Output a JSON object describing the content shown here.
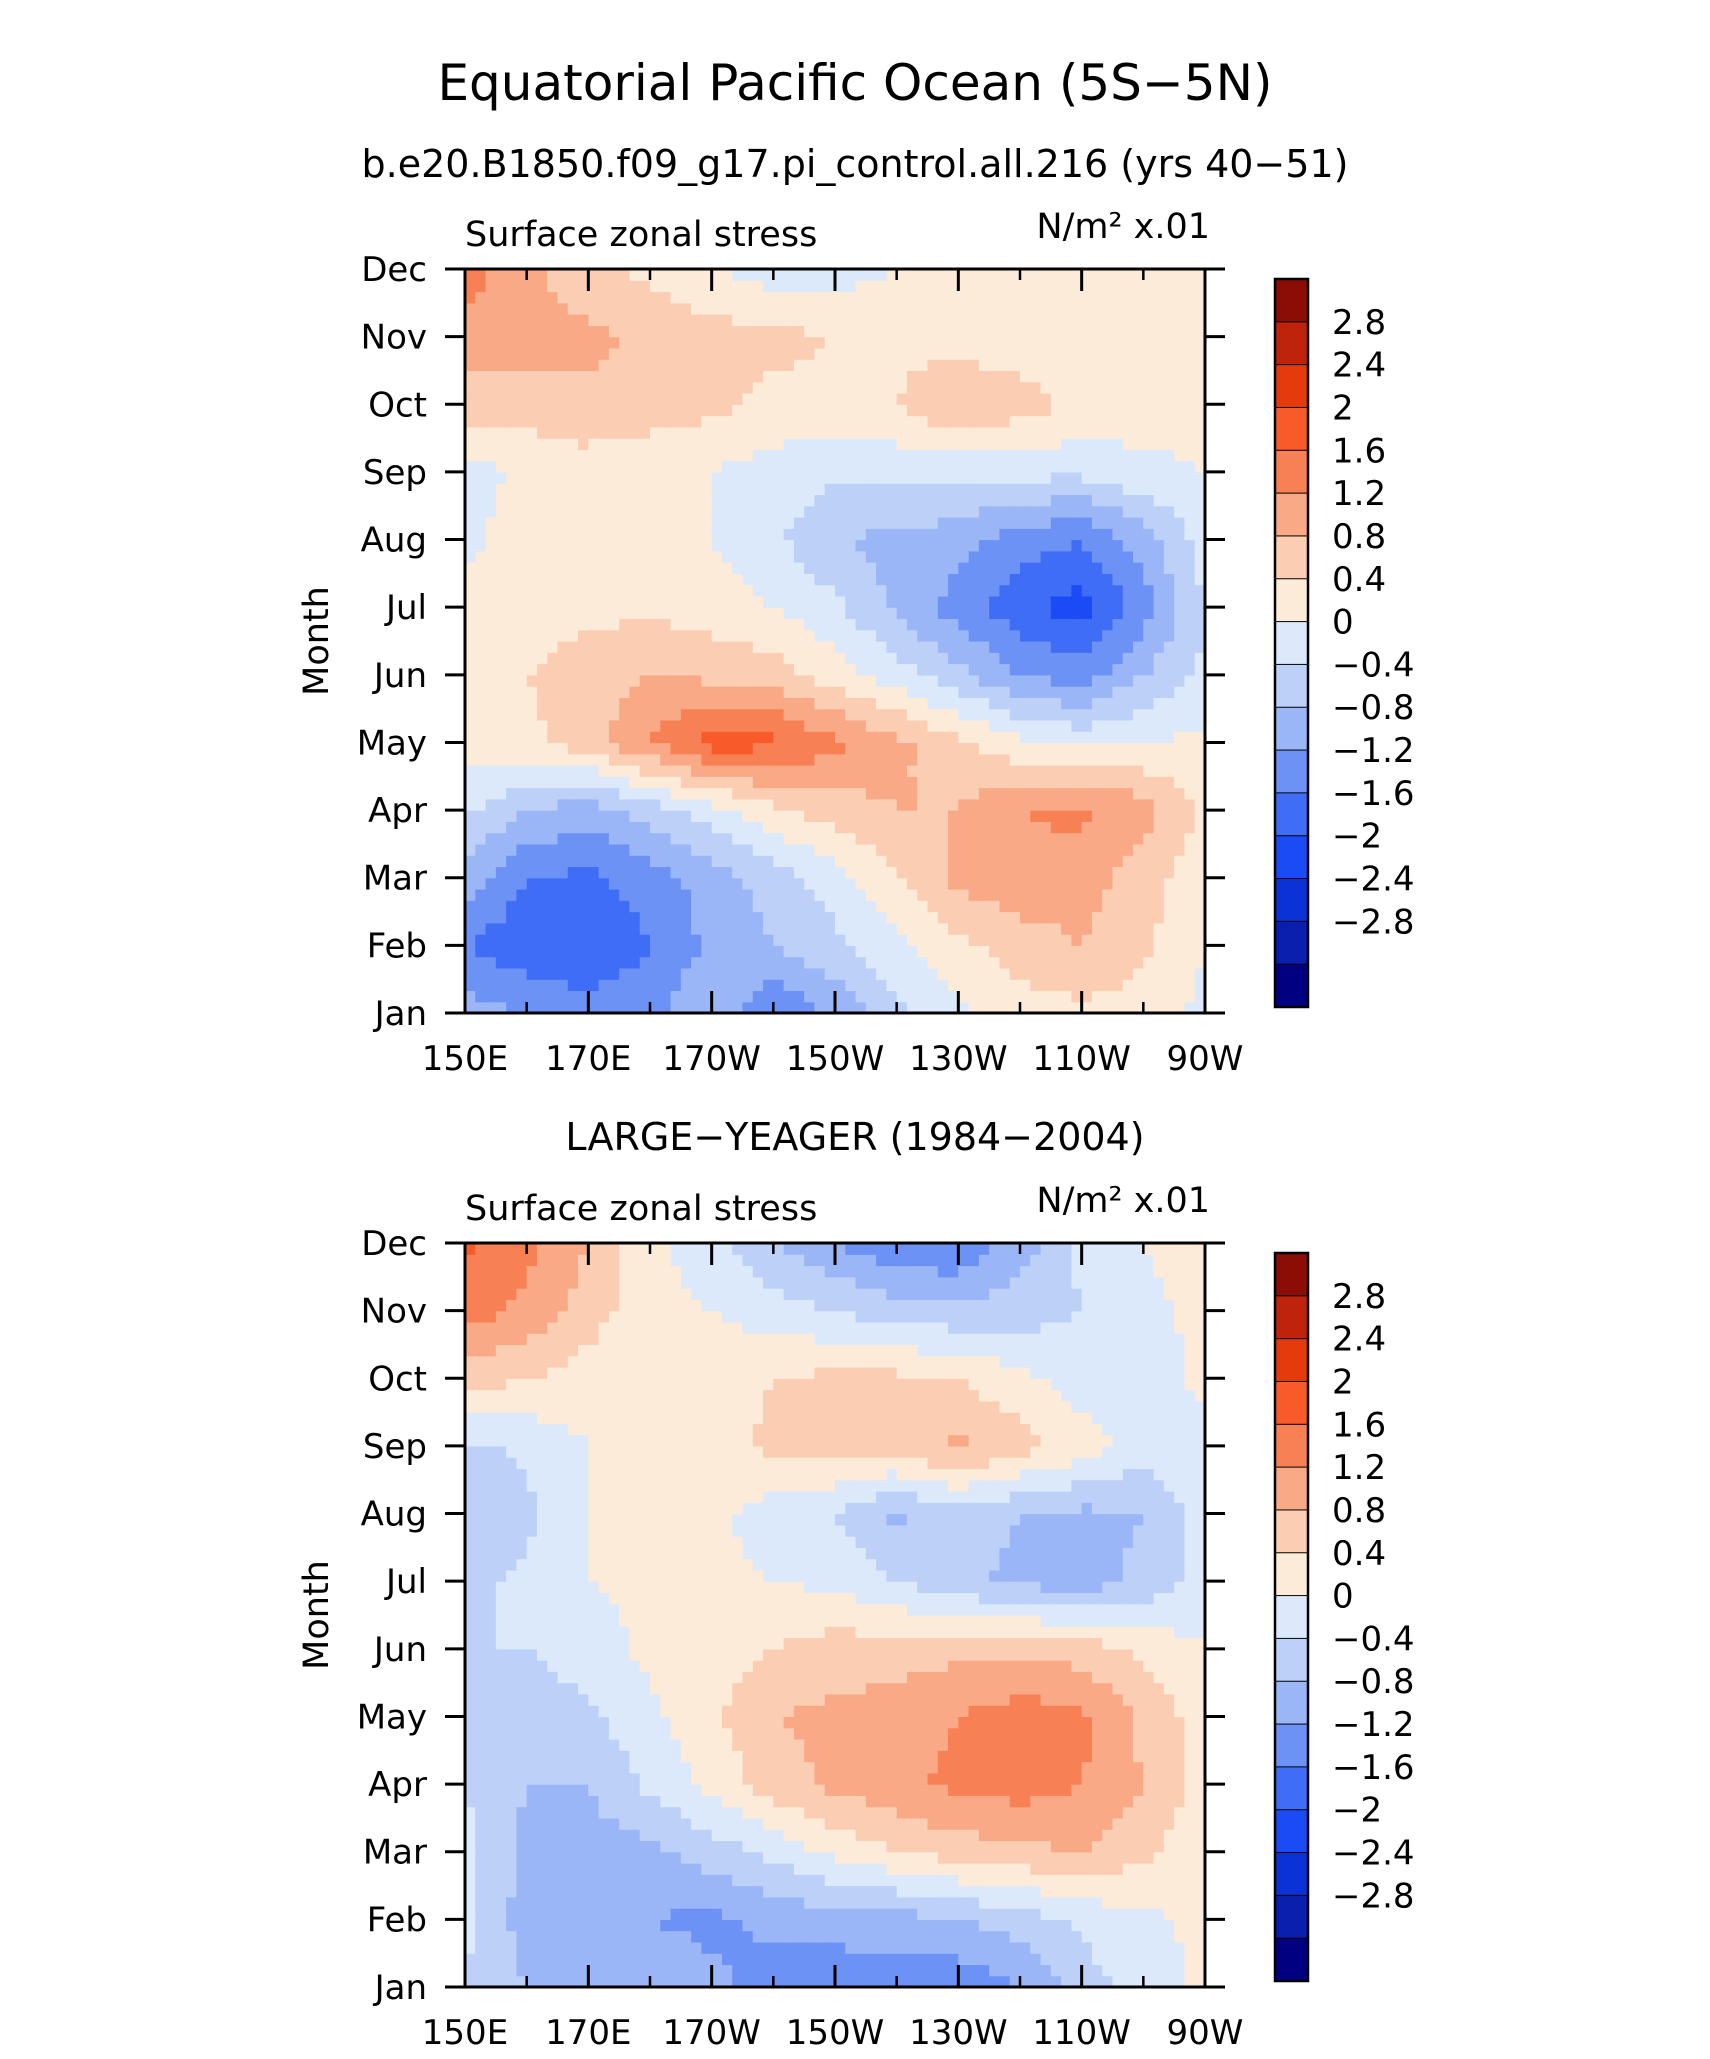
{
  "header": {
    "title": "Equatorial Pacific Ocean (5S−5N)",
    "subtitle": "b.e20.B1850.f09_g17.pi_control.all.216 (yrs 40−51)"
  },
  "palette": {
    "levels": [
      "-3.2",
      "-2.8",
      "-2.4",
      "-2",
      "-1.6",
      "-1.2",
      "-0.8",
      "-0.4",
      "0",
      "0.4",
      "0.8",
      "1.2",
      "1.6",
      "2",
      "2.4",
      "2.8"
    ],
    "colors": [
      "#000080",
      "#0a1fae",
      "#0a32d6",
      "#1a4bf5",
      "#3f6df5",
      "#6c92f6",
      "#9bb6f6",
      "#bcd0f8",
      "#dce9fb",
      "#fdebd9",
      "#fbcdb2",
      "#f9a986",
      "#f88055",
      "#f95a2a",
      "#e43a0c",
      "#bf230b",
      "#8c0c06"
    ]
  },
  "chart_data": [
    {
      "type": "heatmap",
      "panel_title": "",
      "left_label": "Surface zonal stress",
      "right_label": "N/m² x.01",
      "xlabel": "",
      "ylabel": "Month",
      "x_range": [
        150,
        270
      ],
      "x_ticks": [
        "150E",
        "170E",
        "170W",
        "150W",
        "130W",
        "110W",
        "90W"
      ],
      "y_ticks": [
        "Jan",
        "Feb",
        "Mar",
        "Apr",
        "May",
        "Jun",
        "Jul",
        "Aug",
        "Sep",
        "Oct",
        "Nov",
        "Dec"
      ],
      "colorbar_labels": [
        "2.8",
        "2.4",
        "2",
        "1.6",
        "1.2",
        "0.8",
        "0.4",
        "0",
        "−0.4",
        "−0.8",
        "−1.2",
        "−1.6",
        "−2",
        "−2.4",
        "−2.8"
      ],
      "x": [
        150,
        160,
        170,
        180,
        190,
        200,
        210,
        220,
        230,
        240,
        250,
        260,
        270
      ],
      "y": [
        "Jan",
        "Feb",
        "Mar",
        "Apr",
        "May",
        "Jun",
        "Jul",
        "Aug",
        "Sep",
        "Oct",
        "Nov",
        "Dec"
      ],
      "z": [
        [
          -1.0,
          -1.2,
          -1.4,
          -1.3,
          -0.8,
          -1.6,
          -1.1,
          -0.5,
          -0.1,
          0.2,
          0.3,
          0.2,
          -0.1
        ],
        [
          -1.6,
          -1.9,
          -2.0,
          -1.6,
          -1.1,
          -0.8,
          -0.5,
          -0.1,
          0.3,
          0.6,
          0.8,
          0.5,
          0.0
        ],
        [
          -1.0,
          -1.6,
          -1.7,
          -1.4,
          -1.0,
          -0.6,
          -0.2,
          0.4,
          0.9,
          1.1,
          1.0,
          0.6,
          0.1
        ],
        [
          -0.3,
          -0.8,
          -1.0,
          -0.6,
          -0.2,
          0.3,
          0.6,
          0.8,
          0.8,
          1.2,
          1.3,
          1.0,
          0.3
        ],
        [
          0.2,
          0.3,
          0.6,
          1.2,
          1.8,
          1.7,
          1.3,
          0.9,
          0.5,
          0.1,
          -0.1,
          0.0,
          0.1
        ],
        [
          0.2,
          0.4,
          0.6,
          0.8,
          0.7,
          0.6,
          0.2,
          -0.2,
          -0.7,
          -1.2,
          -1.4,
          -0.8,
          -0.3
        ],
        [
          0.1,
          0.2,
          0.3,
          0.3,
          0.2,
          0.0,
          -0.3,
          -0.9,
          -1.4,
          -1.9,
          -2.2,
          -1.4,
          -0.4
        ],
        [
          -0.1,
          0.2,
          0.3,
          0.2,
          0.0,
          -0.3,
          -0.8,
          -0.9,
          -1.0,
          -1.4,
          -1.6,
          -1.0,
          -0.2
        ],
        [
          -0.2,
          0.1,
          0.2,
          0.1,
          0.0,
          -0.2,
          -0.3,
          -0.3,
          -0.3,
          -0.3,
          -0.3,
          -0.1,
          0.0
        ],
        [
          0.6,
          0.6,
          0.7,
          0.6,
          0.5,
          0.3,
          0.3,
          0.4,
          0.8,
          0.6,
          0.3,
          0.2,
          0.1
        ],
        [
          1.0,
          1.0,
          0.9,
          0.7,
          0.6,
          0.5,
          0.4,
          0.3,
          0.2,
          0.1,
          0.1,
          0.1,
          0.0
        ],
        [
          1.4,
          0.9,
          0.5,
          0.3,
          0.0,
          -0.2,
          -0.2,
          0.0,
          0.1,
          0.2,
          0.2,
          0.2,
          0.2
        ]
      ]
    },
    {
      "type": "heatmap",
      "panel_title": "LARGE−YEAGER (1984−2004)",
      "left_label": "Surface zonal stress",
      "right_label": "N/m² x.01",
      "xlabel": "",
      "ylabel": "Month",
      "x_range": [
        150,
        270
      ],
      "x_ticks": [
        "150E",
        "170E",
        "170W",
        "150W",
        "130W",
        "110W",
        "90W"
      ],
      "y_ticks": [
        "Jan",
        "Feb",
        "Mar",
        "Apr",
        "May",
        "Jun",
        "Jul",
        "Aug",
        "Sep",
        "Oct",
        "Nov",
        "Dec"
      ],
      "colorbar_labels": [
        "2.8",
        "2.4",
        "2",
        "1.6",
        "1.2",
        "0.8",
        "0.4",
        "0",
        "−0.4",
        "−0.8",
        "−1.2",
        "−1.6",
        "−2",
        "−2.4",
        "−2.8"
      ],
      "x": [
        150,
        160,
        170,
        180,
        190,
        200,
        210,
        220,
        230,
        240,
        250,
        260,
        270
      ],
      "y": [
        "Jan",
        "Feb",
        "Mar",
        "Apr",
        "May",
        "Jun",
        "Jul",
        "Aug",
        "Sep",
        "Oct",
        "Nov",
        "Dec"
      ],
      "z": [
        [
          -0.4,
          -0.8,
          -1.0,
          -0.9,
          -1.1,
          -1.4,
          -1.5,
          -1.4,
          -1.5,
          -1.2,
          -0.6,
          -0.2,
          0.1
        ],
        [
          -0.3,
          -1.0,
          -1.2,
          -1.2,
          -1.3,
          -1.1,
          -1.0,
          -1.0,
          -0.8,
          -0.6,
          -0.3,
          -0.1,
          0.1
        ],
        [
          -0.3,
          -0.9,
          -1.0,
          -0.9,
          -0.6,
          -0.3,
          0.1,
          0.4,
          0.6,
          0.7,
          0.8,
          0.5,
          0.1
        ],
        [
          -0.4,
          -0.8,
          -0.8,
          -0.3,
          0.1,
          0.6,
          0.9,
          1.1,
          1.3,
          1.4,
          1.2,
          0.8,
          0.2
        ],
        [
          -0.5,
          -0.6,
          -0.5,
          -0.1,
          0.3,
          0.8,
          0.9,
          1.0,
          1.2,
          1.4,
          1.3,
          0.7,
          0.2
        ],
        [
          -0.4,
          -0.4,
          -0.2,
          0.1,
          0.2,
          0.4,
          0.6,
          0.6,
          0.7,
          0.7,
          0.6,
          0.3,
          0.0
        ],
        [
          -0.5,
          -0.3,
          0.0,
          0.1,
          0.1,
          0.0,
          -0.1,
          -0.4,
          -0.7,
          -0.9,
          -1.0,
          -0.7,
          -0.2
        ],
        [
          -0.8,
          -0.5,
          0.0,
          0.1,
          0.1,
          -0.2,
          -0.4,
          -0.9,
          -0.6,
          -0.8,
          -0.9,
          -0.8,
          -0.2
        ],
        [
          -0.5,
          -0.3,
          0.0,
          0.1,
          0.2,
          0.5,
          0.6,
          0.6,
          0.9,
          0.6,
          0.2,
          -0.2,
          -0.1
        ],
        [
          0.6,
          0.4,
          0.2,
          0.1,
          0.2,
          0.4,
          0.5,
          0.5,
          0.4,
          0.1,
          -0.2,
          -0.2,
          0.1
        ],
        [
          1.4,
          1.1,
          0.6,
          0.1,
          0.0,
          -0.2,
          -0.4,
          -0.6,
          -0.7,
          -0.6,
          -0.4,
          -0.1,
          0.1
        ],
        [
          1.7,
          1.3,
          0.8,
          0.1,
          -0.2,
          -0.8,
          -1.2,
          -1.5,
          -1.6,
          -1.0,
          -0.3,
          0.0,
          0.2
        ]
      ]
    }
  ]
}
